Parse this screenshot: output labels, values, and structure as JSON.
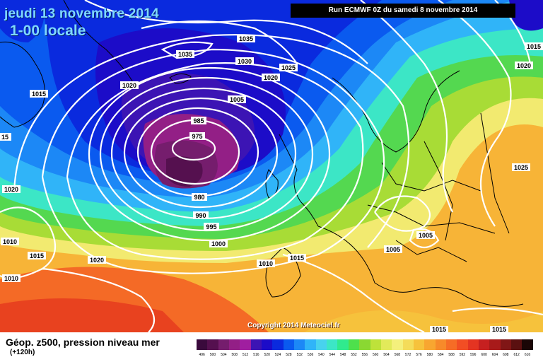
{
  "header": {
    "date_line": "jeudi 13 novembre 2014",
    "time_line": "1-00 locale",
    "run_info": "Run ECMWF 0Z du samedi 8 novembre 2014"
  },
  "footer": {
    "variable": "Géop. z500, pression niveau mer",
    "lead_time": "(+120h)",
    "copyright": "Copyright 2014 Meteociel.fr"
  },
  "legend": {
    "values": [
      "496",
      "500",
      "504",
      "508",
      "512",
      "516",
      "520",
      "524",
      "528",
      "532",
      "536",
      "540",
      "544",
      "548",
      "552",
      "556",
      "560",
      "564",
      "568",
      "572",
      "576",
      "580",
      "584",
      "588",
      "592",
      "596",
      "600",
      "604",
      "608",
      "612",
      "616"
    ],
    "colors": [
      "#3a0a3c",
      "#55104f",
      "#751d6d",
      "#931f86",
      "#a01ea0",
      "#3c14b4",
      "#1c0cc8",
      "#0a2ade",
      "#0a5aef",
      "#1c88f6",
      "#30b4f8",
      "#48d2ee",
      "#3ce6c6",
      "#30ea8e",
      "#4ee04c",
      "#8ad832",
      "#bee23a",
      "#e2ea5a",
      "#f4f07c",
      "#f4dc5a",
      "#f6c23c",
      "#f8a630",
      "#f78a2a",
      "#f66c26",
      "#f24e24",
      "#e43422",
      "#c62020",
      "#a81a1a",
      "#801616",
      "#5a1010",
      "#1a0606"
    ]
  },
  "pressure_labels": [
    {
      "id": "l1",
      "text": "1035"
    },
    {
      "id": "l2",
      "text": "1035"
    },
    {
      "id": "l3",
      "text": "1030"
    },
    {
      "id": "l4",
      "text": "1025"
    },
    {
      "id": "l5",
      "text": "1020"
    },
    {
      "id": "l6",
      "text": "1020"
    },
    {
      "id": "l7",
      "text": "1015"
    },
    {
      "id": "l8",
      "text": "1005"
    },
    {
      "id": "l9",
      "text": "985"
    },
    {
      "id": "l10",
      "text": "975"
    },
    {
      "id": "l11",
      "text": "980"
    },
    {
      "id": "l12",
      "text": "990"
    },
    {
      "id": "l13",
      "text": "995"
    },
    {
      "id": "l14",
      "text": "1000"
    },
    {
      "id": "l15",
      "text": "1010"
    },
    {
      "id": "l16",
      "text": "1015"
    },
    {
      "id": "l17",
      "text": "1020"
    },
    {
      "id": "l18",
      "text": "1015"
    },
    {
      "id": "l19",
      "text": "1010"
    },
    {
      "id": "l20",
      "text": "1010"
    },
    {
      "id": "l21",
      "text": "1020"
    },
    {
      "id": "l22",
      "text": "1005"
    },
    {
      "id": "l23",
      "text": "1005"
    },
    {
      "id": "l24",
      "text": "1025"
    },
    {
      "id": "l25",
      "text": "1020"
    },
    {
      "id": "l26",
      "text": "1015"
    },
    {
      "id": "l27",
      "text": "1015"
    },
    {
      "id": "l28",
      "text": "1015"
    },
    {
      "id": "l29",
      "text": "15"
    }
  ]
}
